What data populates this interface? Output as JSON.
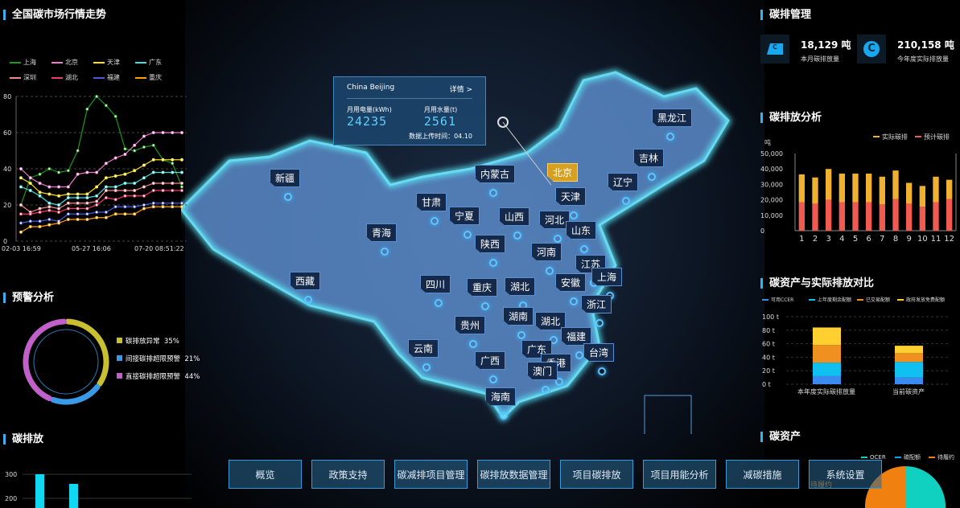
{
  "titles": {
    "market": "全国碳市场行情走势",
    "warning": "预警分析",
    "emission": "碳排放",
    "management": "碳排管理",
    "analysis": "碳排放分析",
    "compare": "碳资产与实际排放对比",
    "assets": "碳资产"
  },
  "market_chart": {
    "type": "line",
    "y_ticks": [
      "0",
      "20",
      "40",
      "60",
      "80"
    ],
    "ylim": [
      0,
      80
    ],
    "x_ticks": [
      "02-03 16:59",
      "05-27 16:06",
      "07-20 08:51:22"
    ],
    "series": [
      {
        "name": "上海",
        "color": "#1a9a1a",
        "values": [
          20,
          35,
          37,
          40,
          38,
          39,
          50,
          73,
          80,
          75,
          69,
          51,
          50,
          52,
          53,
          45,
          43,
          30
        ]
      },
      {
        "name": "北京",
        "color": "#f07ad0",
        "values": [
          40,
          35,
          32,
          30,
          30,
          30,
          37,
          38,
          38,
          43,
          46,
          48,
          53,
          58,
          60,
          60,
          60,
          60
        ]
      },
      {
        "name": "天津",
        "color": "#ffe000",
        "values": [
          35,
          32,
          27,
          26,
          25,
          26,
          26,
          26,
          30,
          35,
          36,
          37,
          39,
          42,
          45,
          45,
          45,
          45
        ]
      },
      {
        "name": "广东",
        "color": "#3ee0e0",
        "values": [
          30,
          28,
          25,
          21,
          20,
          24,
          24,
          24,
          25,
          30,
          30,
          32,
          32,
          35,
          38,
          38,
          38,
          38
        ]
      },
      {
        "name": "深圳",
        "color": "#f08a8a",
        "values": [
          20,
          16,
          18,
          19,
          18,
          21,
          21,
          21,
          22,
          28,
          28,
          28,
          28,
          30,
          32,
          32,
          32,
          32
        ]
      },
      {
        "name": "湖北",
        "color": "#f03a6a",
        "values": [
          15,
          15,
          16,
          17,
          16,
          18,
          18,
          18,
          20,
          24,
          23,
          25,
          25,
          25,
          28,
          28,
          28,
          28
        ]
      },
      {
        "name": "福建",
        "color": "#4a5ae0",
        "values": [
          10,
          11,
          11,
          12,
          11,
          15,
          15,
          15,
          16,
          16,
          19,
          19,
          19,
          20,
          21,
          21,
          21,
          21
        ]
      },
      {
        "name": "重庆",
        "color": "#ffa000",
        "values": [
          5,
          8,
          8,
          9,
          10,
          12,
          12,
          12,
          13,
          13,
          15,
          15,
          15,
          18,
          19,
          19,
          19,
          19
        ]
      }
    ]
  },
  "warning_chart": {
    "type": "pie",
    "items": [
      {
        "label": "碳排放异常",
        "pct": "35%",
        "value": 35,
        "color": "#c8c030"
      },
      {
        "label": "间接碳排超限预警",
        "pct": "21%",
        "value": 21,
        "color": "#3a9ae8"
      },
      {
        "label": "直接碳排超限预警",
        "pct": "44%",
        "value": 44,
        "color": "#c060c8"
      }
    ]
  },
  "emission_chart": {
    "type": "bar",
    "y_ticks": [
      "200",
      "300"
    ],
    "values": [
      300,
      260
    ]
  },
  "management": {
    "month_value": "18,129 吨",
    "month_label": "本月碳排放量",
    "year_value": "210,158 吨",
    "year_label": "今年度实际排放量"
  },
  "analysis_chart": {
    "type": "bar",
    "unit": "吨",
    "ylim": [
      0,
      50000
    ],
    "y_ticks": [
      "0",
      "10,000",
      "20,000",
      "30,000",
      "40,000",
      "50,000"
    ],
    "categories": [
      "1",
      "2",
      "3",
      "4",
      "5",
      "6",
      "7",
      "8",
      "9",
      "10",
      "11",
      "12"
    ],
    "series": [
      {
        "name": "预计碳排",
        "color": "#f05a50",
        "values": [
          18500,
          17500,
          20000,
          18500,
          18500,
          18500,
          17000,
          20500,
          17500,
          15500,
          18500,
          20500
        ]
      },
      {
        "name": "实际碳排",
        "color": "#f0b030",
        "values": [
          18000,
          17000,
          20000,
          18500,
          18500,
          18500,
          18000,
          18500,
          13500,
          13500,
          16500,
          12500
        ]
      }
    ],
    "legend": [
      "实际碳排",
      "预计碳排"
    ]
  },
  "compare_chart": {
    "type": "bar",
    "ylim": [
      0,
      100
    ],
    "y_ticks": [
      "0 t",
      "20 t",
      "40 t",
      "60 t",
      "80 t",
      "100 t"
    ],
    "categories": [
      "本年度实际碳排放量",
      "当前碳资产"
    ],
    "series": [
      {
        "name": "可用CCER",
        "color": "#3a8af0",
        "values": [
          12,
          10
        ]
      },
      {
        "name": "上年度剩余配额",
        "color": "#10c0f0",
        "values": [
          20,
          23
        ]
      },
      {
        "name": "已交易配额",
        "color": "#f09020",
        "values": [
          26,
          13
        ]
      },
      {
        "name": "政府发放免费配额",
        "color": "#ffd030",
        "values": [
          26,
          11
        ]
      }
    ]
  },
  "assets_chart": {
    "type": "pie",
    "legend": [
      {
        "name": "OCER",
        "color": "#10d0c0"
      },
      {
        "name": "碳配额",
        "color": "#10a0f0"
      },
      {
        "name": "待履约",
        "color": "#f08010"
      }
    ],
    "labels": [
      "待履约",
      "OCER"
    ]
  },
  "tooltip": {
    "city": "China Beijing",
    "detail": "详情 >",
    "elec_label": "月用电量(kWh)",
    "elec_value": "24235",
    "water_label": "月用水量(t)",
    "water_value": "2561",
    "upload": "数据上传时间：04.10"
  },
  "map": {
    "selected": "北京",
    "provinces": [
      "黑龙江",
      "吉林",
      "辽宁",
      "内蒙古",
      "北京",
      "天津",
      "新疆",
      "甘肃",
      "宁夏",
      "山西",
      "河北",
      "山东",
      "青海",
      "陕西",
      "河南",
      "江苏",
      "上海",
      "西藏",
      "四川",
      "重庆",
      "湖北",
      "安徽",
      "湖南",
      "湖北",
      "浙江",
      "贵州",
      "福建",
      "云南",
      "广西",
      "广东",
      "台湾",
      "香港",
      "澳门",
      "海南"
    ]
  },
  "nav": [
    "概览",
    "政策支持",
    "碳减排项目管理",
    "碳排放数据管理",
    "项目碳排放",
    "项目用能分析",
    "减碳措施",
    "系统设置"
  ]
}
